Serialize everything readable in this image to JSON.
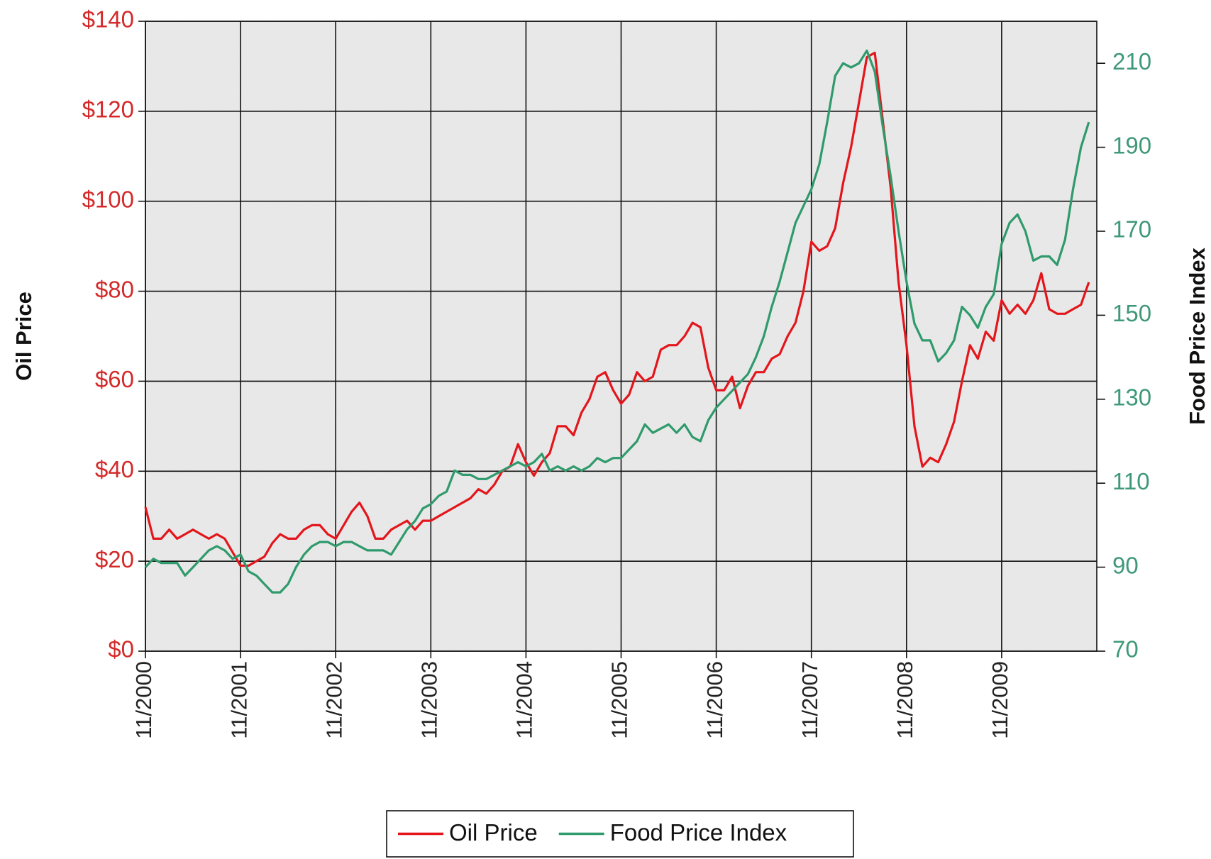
{
  "chart_data": {
    "type": "line",
    "y_label": "Oil Price",
    "y2_label": "Food Price Index",
    "categories": [
      "11/2000",
      null,
      null,
      null,
      null,
      null,
      null,
      null,
      null,
      null,
      null,
      null,
      "11/2001",
      null,
      null,
      null,
      null,
      null,
      null,
      null,
      null,
      null,
      null,
      null,
      "11/2002",
      null,
      null,
      null,
      null,
      null,
      null,
      null,
      null,
      null,
      null,
      null,
      "11/2003",
      null,
      null,
      null,
      null,
      null,
      null,
      null,
      null,
      null,
      null,
      null,
      "11/2004",
      null,
      null,
      null,
      null,
      null,
      null,
      null,
      null,
      null,
      null,
      null,
      "11/2005",
      null,
      null,
      null,
      null,
      null,
      null,
      null,
      null,
      null,
      null,
      null,
      "11/2006",
      null,
      null,
      null,
      null,
      null,
      null,
      null,
      null,
      null,
      null,
      null,
      "11/2007",
      null,
      null,
      null,
      null,
      null,
      null,
      null,
      null,
      null,
      null,
      null,
      "11/2008",
      null,
      null,
      null,
      null,
      null,
      null,
      null,
      null,
      null,
      null,
      null,
      "11/2009",
      null,
      null,
      null,
      null,
      null,
      null,
      null,
      null,
      null,
      null,
      null
    ],
    "series": [
      {
        "name": "Oil Price",
        "color": "#e3161c",
        "axis": "y",
        "values": [
          32,
          25,
          25,
          27,
          25,
          26,
          27,
          26,
          25,
          26,
          25,
          22,
          19,
          19,
          20,
          21,
          24,
          26,
          25,
          25,
          27,
          28,
          28,
          26,
          25,
          28,
          31,
          33,
          30,
          25,
          25,
          27,
          28,
          29,
          27,
          29,
          29,
          30,
          31,
          32,
          33,
          34,
          36,
          35,
          37,
          40,
          41,
          46,
          42,
          39,
          42,
          44,
          50,
          50,
          48,
          53,
          56,
          61,
          62,
          58,
          55,
          57,
          62,
          60,
          61,
          67,
          68,
          68,
          70,
          73,
          72,
          63,
          58,
          58,
          61,
          54,
          59,
          62,
          62,
          65,
          66,
          70,
          73,
          80,
          91,
          89,
          90,
          94,
          104,
          112,
          122,
          132,
          133,
          118,
          103,
          82,
          68,
          50,
          41,
          43,
          42,
          46,
          51,
          60,
          68,
          65,
          71,
          69,
          78,
          75,
          77,
          75,
          78,
          84,
          76,
          75,
          75,
          76,
          77,
          82
        ]
      },
      {
        "name": "Food Price Index",
        "color": "#2f9a6c",
        "axis": "y2",
        "values": [
          90,
          92,
          91,
          91,
          91,
          88,
          90,
          92,
          94,
          95,
          94,
          92,
          93,
          89,
          88,
          86,
          84,
          84,
          86,
          90,
          93,
          95,
          96,
          96,
          95,
          96,
          96,
          95,
          94,
          94,
          94,
          93,
          96,
          99,
          101,
          104,
          105,
          107,
          108,
          113,
          112,
          112,
          111,
          111,
          112,
          113,
          114,
          115,
          114,
          115,
          117,
          113,
          114,
          113,
          114,
          113,
          114,
          116,
          115,
          116,
          116,
          118,
          120,
          124,
          122,
          123,
          124,
          122,
          124,
          121,
          120,
          125,
          128,
          130,
          132,
          134,
          136,
          140,
          145,
          152,
          158,
          165,
          172,
          176,
          180,
          186,
          196,
          207,
          210,
          209,
          210,
          213,
          208,
          195,
          183,
          170,
          158,
          148,
          144,
          144,
          139,
          141,
          144,
          152,
          150,
          147,
          152,
          155,
          167,
          172,
          174,
          170,
          163,
          164,
          164,
          162,
          168,
          180,
          190,
          196
        ]
      }
    ],
    "ylim": [
      0,
      140
    ],
    "yticks": [
      {
        "value": 0,
        "label": "$0"
      },
      {
        "value": 20,
        "label": "$20"
      },
      {
        "value": 40,
        "label": "$40"
      },
      {
        "value": 60,
        "label": "$60"
      },
      {
        "value": 80,
        "label": "$80"
      },
      {
        "value": 100,
        "label": "$100"
      },
      {
        "value": 120,
        "label": "$120"
      },
      {
        "value": 140,
        "label": "$140"
      }
    ],
    "y2lim": [
      70,
      220
    ],
    "y2ticks": [
      70,
      90,
      110,
      130,
      150,
      170,
      190,
      210
    ],
    "grid": true,
    "legend": "bottom"
  }
}
